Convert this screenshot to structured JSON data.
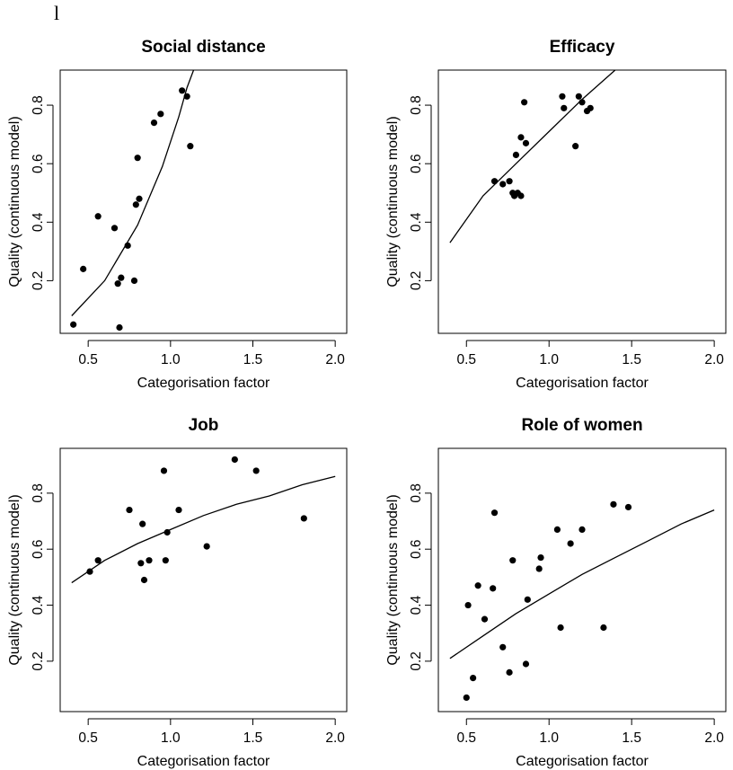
{
  "figure": {
    "corner_mark": "l"
  },
  "chart_data": [
    {
      "type": "scatter",
      "title": "Social distance",
      "xlabel": "Categorisation factor",
      "ylabel": "Quality (continuous model)",
      "xlim": [
        0.33,
        2.07
      ],
      "ylim": [
        0.02,
        0.92
      ],
      "xticks": [
        "0.5",
        "1.0",
        "1.5",
        "2.0"
      ],
      "yticks": [
        "0.2",
        "0.4",
        "0.6",
        "0.8"
      ],
      "points": [
        [
          0.41,
          0.05
        ],
        [
          0.47,
          0.24
        ],
        [
          0.56,
          0.42
        ],
        [
          0.66,
          0.38
        ],
        [
          0.68,
          0.19
        ],
        [
          0.69,
          0.04
        ],
        [
          0.7,
          0.21
        ],
        [
          0.74,
          0.32
        ],
        [
          0.78,
          0.2
        ],
        [
          0.79,
          0.46
        ],
        [
          0.8,
          0.62
        ],
        [
          0.81,
          0.48
        ],
        [
          0.9,
          0.74
        ],
        [
          0.94,
          0.77
        ],
        [
          1.07,
          0.85
        ],
        [
          1.1,
          0.83
        ],
        [
          1.12,
          0.66
        ]
      ],
      "fit_line": [
        [
          0.4,
          0.08
        ],
        [
          0.6,
          0.2
        ],
        [
          0.8,
          0.39
        ],
        [
          0.95,
          0.59
        ],
        [
          1.05,
          0.76
        ],
        [
          1.1,
          0.86
        ],
        [
          1.16,
          0.95
        ]
      ]
    },
    {
      "type": "scatter",
      "title": "Efficacy",
      "xlabel": "Categorisation factor",
      "ylabel": "Quality (continuous model)",
      "xlim": [
        0.33,
        2.07
      ],
      "ylim": [
        0.02,
        0.92
      ],
      "xticks": [
        "0.5",
        "1.0",
        "1.5",
        "2.0"
      ],
      "yticks": [
        "0.2",
        "0.4",
        "0.6",
        "0.8"
      ],
      "points": [
        [
          0.67,
          0.54
        ],
        [
          0.72,
          0.53
        ],
        [
          0.76,
          0.54
        ],
        [
          0.78,
          0.5
        ],
        [
          0.79,
          0.49
        ],
        [
          0.8,
          0.63
        ],
        [
          0.81,
          0.5
        ],
        [
          0.83,
          0.49
        ],
        [
          0.83,
          0.69
        ],
        [
          0.85,
          0.81
        ],
        [
          0.86,
          0.67
        ],
        [
          1.08,
          0.83
        ],
        [
          1.09,
          0.79
        ],
        [
          1.16,
          0.66
        ],
        [
          1.18,
          0.83
        ],
        [
          1.2,
          0.81
        ],
        [
          1.23,
          0.78
        ],
        [
          1.25,
          0.79
        ]
      ],
      "fit_line": [
        [
          0.4,
          0.33
        ],
        [
          0.6,
          0.49
        ],
        [
          0.8,
          0.6
        ],
        [
          1.0,
          0.71
        ],
        [
          1.2,
          0.82
        ],
        [
          1.4,
          0.92
        ],
        [
          1.51,
          0.97
        ]
      ]
    },
    {
      "type": "scatter",
      "title": "Job",
      "xlabel": "Categorisation factor",
      "ylabel": "Quality (continuous model)",
      "xlim": [
        0.33,
        2.07
      ],
      "ylim": [
        0.02,
        0.96
      ],
      "xticks": [
        "0.5",
        "1.0",
        "1.5",
        "2.0"
      ],
      "yticks": [
        "0.2",
        "0.4",
        "0.6",
        "0.8"
      ],
      "points": [
        [
          0.51,
          0.52
        ],
        [
          0.56,
          0.56
        ],
        [
          0.75,
          0.74
        ],
        [
          0.82,
          0.55
        ],
        [
          0.83,
          0.69
        ],
        [
          0.84,
          0.49
        ],
        [
          0.87,
          0.56
        ],
        [
          0.96,
          0.88
        ],
        [
          0.97,
          0.56
        ],
        [
          0.98,
          0.66
        ],
        [
          1.05,
          0.74
        ],
        [
          1.22,
          0.61
        ],
        [
          1.39,
          0.92
        ],
        [
          1.52,
          0.88
        ],
        [
          1.81,
          0.71
        ]
      ],
      "fit_line": [
        [
          0.4,
          0.48
        ],
        [
          0.6,
          0.56
        ],
        [
          0.8,
          0.62
        ],
        [
          1.0,
          0.67
        ],
        [
          1.2,
          0.72
        ],
        [
          1.4,
          0.76
        ],
        [
          1.6,
          0.79
        ],
        [
          1.8,
          0.83
        ],
        [
          2.0,
          0.86
        ]
      ]
    },
    {
      "type": "scatter",
      "title": "Role of women",
      "xlabel": "Categorisation factor",
      "ylabel": "Quality (continuous model)",
      "xlim": [
        0.33,
        2.07
      ],
      "ylim": [
        0.02,
        0.96
      ],
      "xticks": [
        "0.5",
        "1.0",
        "1.5",
        "2.0"
      ],
      "yticks": [
        "0.2",
        "0.4",
        "0.6",
        "0.8"
      ],
      "points": [
        [
          0.5,
          0.07
        ],
        [
          0.51,
          0.4
        ],
        [
          0.54,
          0.14
        ],
        [
          0.57,
          0.47
        ],
        [
          0.61,
          0.35
        ],
        [
          0.66,
          0.46
        ],
        [
          0.67,
          0.73
        ],
        [
          0.72,
          0.25
        ],
        [
          0.76,
          0.16
        ],
        [
          0.78,
          0.56
        ],
        [
          0.86,
          0.19
        ],
        [
          0.87,
          0.42
        ],
        [
          0.94,
          0.53
        ],
        [
          0.95,
          0.57
        ],
        [
          1.05,
          0.67
        ],
        [
          1.07,
          0.32
        ],
        [
          1.13,
          0.62
        ],
        [
          1.2,
          0.67
        ],
        [
          1.33,
          0.32
        ],
        [
          1.39,
          0.76
        ],
        [
          1.48,
          0.75
        ]
      ],
      "fit_line": [
        [
          0.4,
          0.21
        ],
        [
          0.6,
          0.29
        ],
        [
          0.8,
          0.37
        ],
        [
          1.0,
          0.44
        ],
        [
          1.2,
          0.51
        ],
        [
          1.4,
          0.57
        ],
        [
          1.6,
          0.63
        ],
        [
          1.8,
          0.69
        ],
        [
          2.0,
          0.74
        ]
      ]
    }
  ]
}
